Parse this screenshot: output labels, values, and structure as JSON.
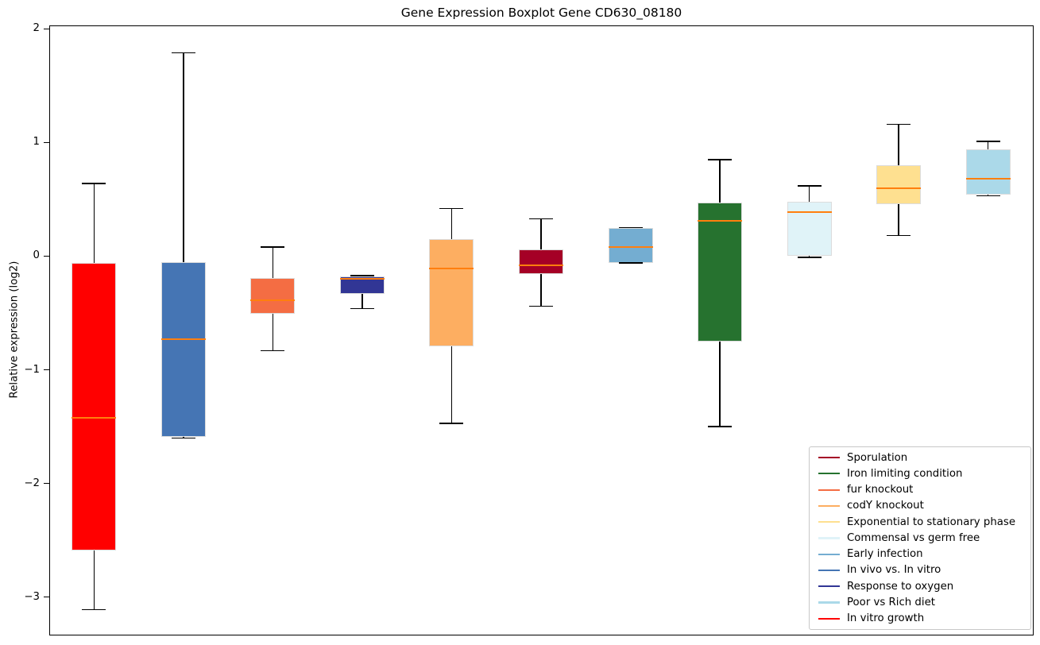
{
  "title": "Gene Expression Boxplot Gene CD630_08180",
  "chart_data": {
    "type": "boxplot",
    "title": "Gene Expression Boxplot Gene CD630_08180",
    "ylabel": "Relative expression (log2)",
    "xlabel": "",
    "ylim": [
      -3.33,
      2.03
    ],
    "yticks": [
      2,
      1,
      0,
      -1,
      -2,
      -3
    ],
    "ytick_labels": [
      "2",
      "1",
      "0",
      "−1",
      "−2",
      "−3"
    ],
    "grid": false,
    "legend_position": "lower right",
    "colors": {
      "median": "#ff7f0e",
      "whisker": "#000000",
      "box_edge": "#dcdcdc",
      "spine": "#000000",
      "background": "#ffffff"
    },
    "boxes": [
      {
        "label": "In vitro growth",
        "color": "#ff0000",
        "whisker_low": -3.11,
        "q1": -2.59,
        "median": -1.42,
        "q3": -0.06,
        "whisker_high": 0.64
      },
      {
        "label": "In vivo vs. In vitro",
        "color": "#4575b4",
        "whisker_low": -1.6,
        "q1": -1.59,
        "median": -0.73,
        "q3": -0.05,
        "whisker_high": 1.79
      },
      {
        "label": "fur knockout",
        "color": "#f46d43",
        "whisker_low": -0.83,
        "q1": -0.51,
        "median": -0.39,
        "q3": -0.19,
        "whisker_high": 0.08
      },
      {
        "label": "Response to oxygen",
        "color": "#313695",
        "whisker_low": -0.46,
        "q1": -0.33,
        "median": -0.2,
        "q3": -0.18,
        "whisker_high": -0.17
      },
      {
        "label": "codY knockout",
        "color": "#fdae61",
        "whisker_low": -1.47,
        "q1": -0.79,
        "median": -0.11,
        "q3": 0.15,
        "whisker_high": 0.42
      },
      {
        "label": "Sporulation",
        "color": "#a50026",
        "whisker_low": -0.44,
        "q1": -0.16,
        "median": -0.08,
        "q3": 0.06,
        "whisker_high": 0.33
      },
      {
        "label": "Early infection",
        "color": "#74add1",
        "whisker_low": -0.06,
        "q1": -0.06,
        "median": 0.08,
        "q3": 0.25,
        "whisker_high": 0.25
      },
      {
        "label": "Iron limiting condition",
        "color": "#26722f",
        "whisker_low": -1.5,
        "q1": -0.75,
        "median": 0.31,
        "q3": 0.47,
        "whisker_high": 0.85
      },
      {
        "label": "Commensal vs germ free",
        "color": "#e0f3f8",
        "whisker_low": -0.01,
        "q1": 0.0,
        "median": 0.39,
        "q3": 0.48,
        "whisker_high": 0.62
      },
      {
        "label": "Exponential to stationary phase",
        "color": "#fee090",
        "whisker_low": 0.18,
        "q1": 0.46,
        "median": 0.6,
        "q3": 0.8,
        "whisker_high": 1.16
      },
      {
        "label": "Poor vs Rich diet",
        "color": "#abd9e9",
        "whisker_low": 0.53,
        "q1": 0.54,
        "median": 0.68,
        "q3": 0.94,
        "whisker_high": 1.01
      }
    ],
    "legend": [
      {
        "label": "Sporulation",
        "color": "#a50026"
      },
      {
        "label": "Iron limiting condition",
        "color": "#26722f"
      },
      {
        "label": "fur knockout",
        "color": "#f46d43"
      },
      {
        "label": "codY knockout",
        "color": "#fdae61"
      },
      {
        "label": "Exponential to stationary phase",
        "color": "#fee090"
      },
      {
        "label": "Commensal vs germ free",
        "color": "#e0f3f8"
      },
      {
        "label": "Early infection",
        "color": "#74add1"
      },
      {
        "label": "In vivo vs. In vitro",
        "color": "#4575b4"
      },
      {
        "label": "Response to oxygen",
        "color": "#313695"
      },
      {
        "label": "Poor vs Rich diet",
        "color": "#abd9e9"
      },
      {
        "label": "In vitro growth",
        "color": "#ff0000"
      }
    ]
  }
}
